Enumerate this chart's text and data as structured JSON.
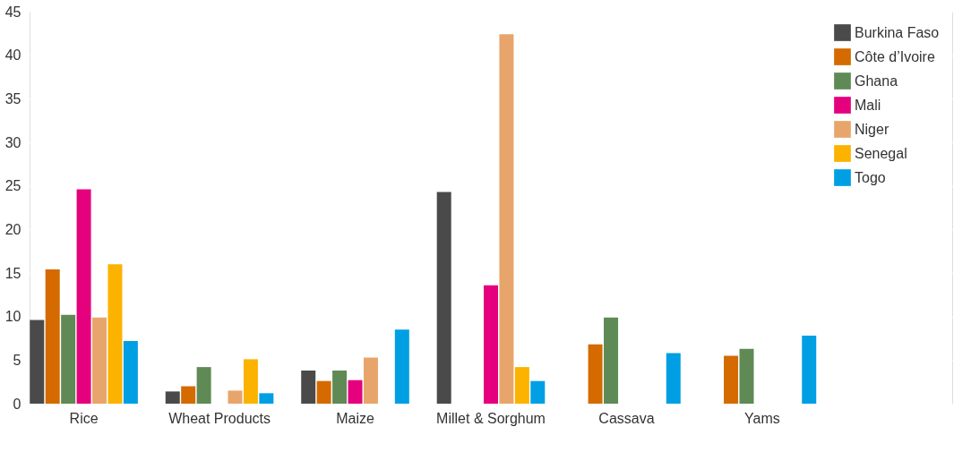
{
  "chart_data": {
    "type": "bar",
    "categories": [
      "Rice",
      "Wheat Products",
      "Maize",
      "Millet & Sorghum",
      "Cassava",
      "Yams",
      null
    ],
    "series": [
      {
        "name": "Burkina Faso",
        "color": "#4a4a4a",
        "values": [
          9.6,
          1.4,
          3.8,
          24.3,
          null,
          null,
          null
        ]
      },
      {
        "name": "Côte d’Ivoire",
        "color": "#d46a00",
        "values": [
          15.4,
          2.0,
          2.6,
          null,
          6.8,
          5.5,
          null
        ]
      },
      {
        "name": "Ghana",
        "color": "#5f8a55",
        "values": [
          10.2,
          4.2,
          3.8,
          null,
          9.9,
          6.3,
          null
        ]
      },
      {
        "name": "Mali",
        "color": "#e5007e",
        "values": [
          24.6,
          null,
          2.7,
          13.6,
          null,
          null,
          null
        ]
      },
      {
        "name": "Niger",
        "color": "#e8a56b",
        "values": [
          9.9,
          1.5,
          5.3,
          42.4,
          null,
          null,
          null
        ]
      },
      {
        "name": "Senegal",
        "color": "#fbb300",
        "values": [
          16.0,
          5.1,
          null,
          4.2,
          null,
          null,
          null
        ]
      },
      {
        "name": "Togo",
        "color": "#009fe3",
        "values": [
          7.2,
          1.2,
          8.5,
          2.6,
          5.8,
          7.8,
          null
        ]
      }
    ],
    "ylim": [
      0,
      45
    ],
    "yticks": [
      0,
      5,
      10,
      15,
      20,
      25,
      30,
      35,
      40,
      45
    ],
    "grid": "y",
    "legend": "top right"
  }
}
